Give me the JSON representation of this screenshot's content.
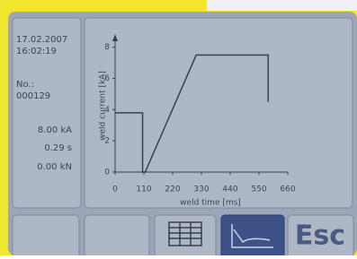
{
  "info": {
    "date": "17.02.2007",
    "time": "16:02:19",
    "number_label": "No.:",
    "number": "000129",
    "current": "8.00 kA",
    "duration": "0.29 s",
    "force": "0.00 kN"
  },
  "chart_data": {
    "type": "line",
    "xlabel": "weld time [ms]",
    "ylabel": "weld current [kA]",
    "x": [
      0,
      105,
      105,
      115,
      310,
      585,
      585
    ],
    "values": [
      3.8,
      3.8,
      0,
      0,
      7.5,
      7.5,
      4.5
    ],
    "color": "#3a3f4a",
    "xlim": [
      0,
      660
    ],
    "xticks": [
      0,
      110,
      220,
      330,
      440,
      550,
      660
    ],
    "ylim": [
      0,
      8.5
    ],
    "yticks": [
      0,
      2,
      4,
      6,
      8
    ]
  },
  "esc_button": "Esc"
}
